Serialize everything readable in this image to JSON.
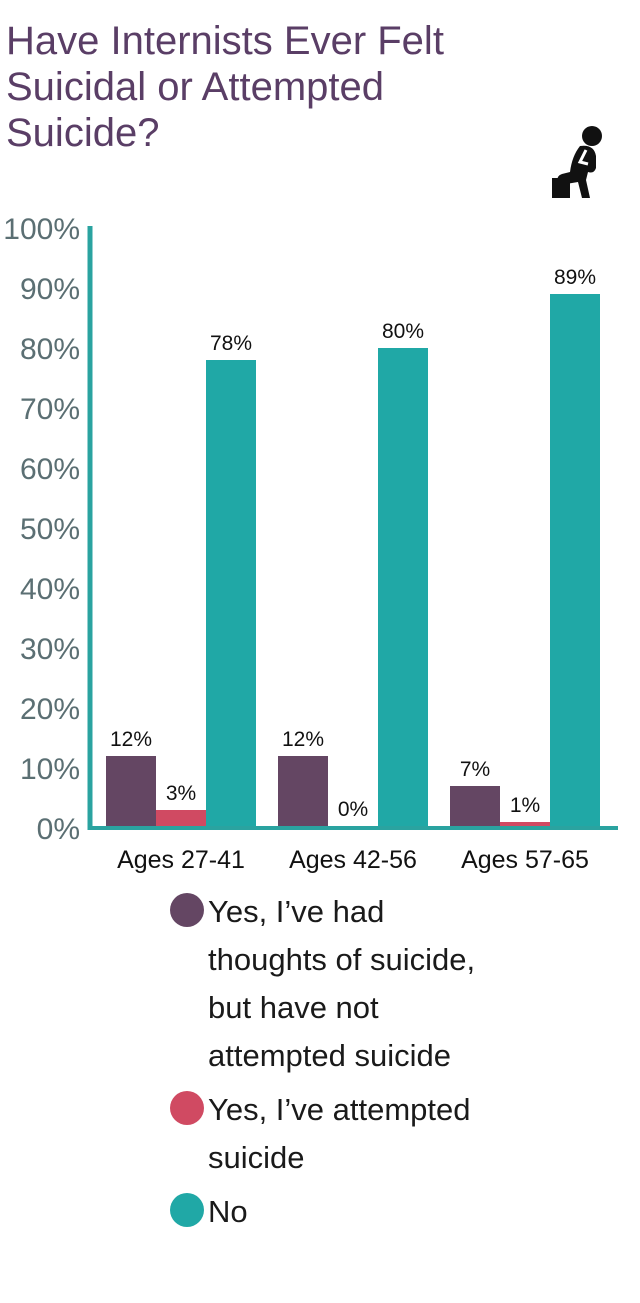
{
  "title_lines": [
    "Have Internists Ever Felt",
    "Suicidal or Attempted",
    "Suicide?"
  ],
  "icon": "thinking-person-icon",
  "colors": {
    "title": "#5a3e66",
    "axis": "#2aa3a0",
    "tick_text": "#5b6f73",
    "series": [
      "#644663",
      "#d04a62",
      "#20a8a6"
    ]
  },
  "chart_data": {
    "type": "bar",
    "title": "Have Internists Ever Felt Suicidal or Attempted Suicide?",
    "categories": [
      "Ages 27-41",
      "Ages 42-56",
      "Ages 57-65"
    ],
    "series": [
      {
        "name": "Yes, I’ve had thoughts of suicide, but have not attempted suicide",
        "values": [
          12,
          12,
          7
        ]
      },
      {
        "name": "Yes, I’ve attempted suicide",
        "values": [
          3,
          0,
          1
        ]
      },
      {
        "name": "No",
        "values": [
          78,
          80,
          89
        ]
      }
    ],
    "data_labels": [
      [
        "12%",
        "12%",
        "7%"
      ],
      [
        "3%",
        "0%",
        "1%"
      ],
      [
        "78%",
        "80%",
        "89%"
      ]
    ],
    "yticks": [
      "0%",
      "10%",
      "20%",
      "30%",
      "40%",
      "50%",
      "60%",
      "70%",
      "80%",
      "90%",
      "100%"
    ],
    "ylim": [
      0,
      100
    ],
    "xlabel": "",
    "ylabel": "",
    "grid": false,
    "legend_position": "bottom"
  },
  "legend": [
    {
      "label_lines": [
        "Yes, I’ve had",
        "thoughts of suicide,",
        "but have not",
        "attempted suicide"
      ]
    },
    {
      "label_lines": [
        "Yes, I’ve attempted",
        "suicide"
      ]
    },
    {
      "label_lines": [
        "No"
      ]
    }
  ]
}
